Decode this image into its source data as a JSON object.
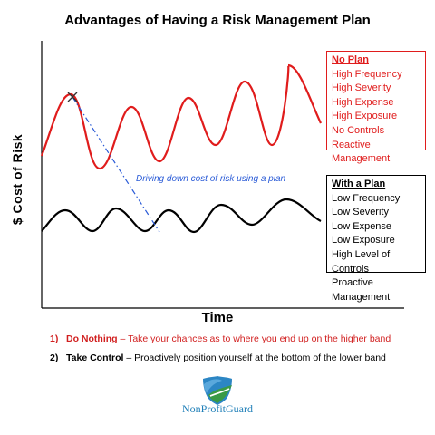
{
  "title": "Advantages of Having a Risk Management Plan",
  "axes": {
    "y_label": "$ Cost of Risk",
    "x_label": "Time"
  },
  "no_plan_box": {
    "heading": "No Plan",
    "items": [
      "High Frequency",
      "High Severity",
      "High Expense",
      "High Exposure",
      "No Controls",
      "Reactive Management"
    ]
  },
  "plan_box": {
    "heading": "With a Plan",
    "items": [
      "Low Frequency",
      "Low Severity",
      "Low Expense",
      "Low Exposure",
      "High Level of Controls",
      "Proactive Management"
    ]
  },
  "annotation": "Driving down cost of risk using a plan",
  "options": [
    {
      "number": "1)",
      "label": "Do Nothing",
      "text": " – Take your chances as to where you end up on the higher band"
    },
    {
      "number": "2)",
      "label": "Take Control",
      "text": " – Proactively position yourself at the bottom of the lower band"
    }
  ],
  "logo": {
    "name": "NonProfitGuard"
  },
  "colors": {
    "high_band": "#e01c1c",
    "low_band": "#000000",
    "trend": "#2a5bd7"
  }
}
